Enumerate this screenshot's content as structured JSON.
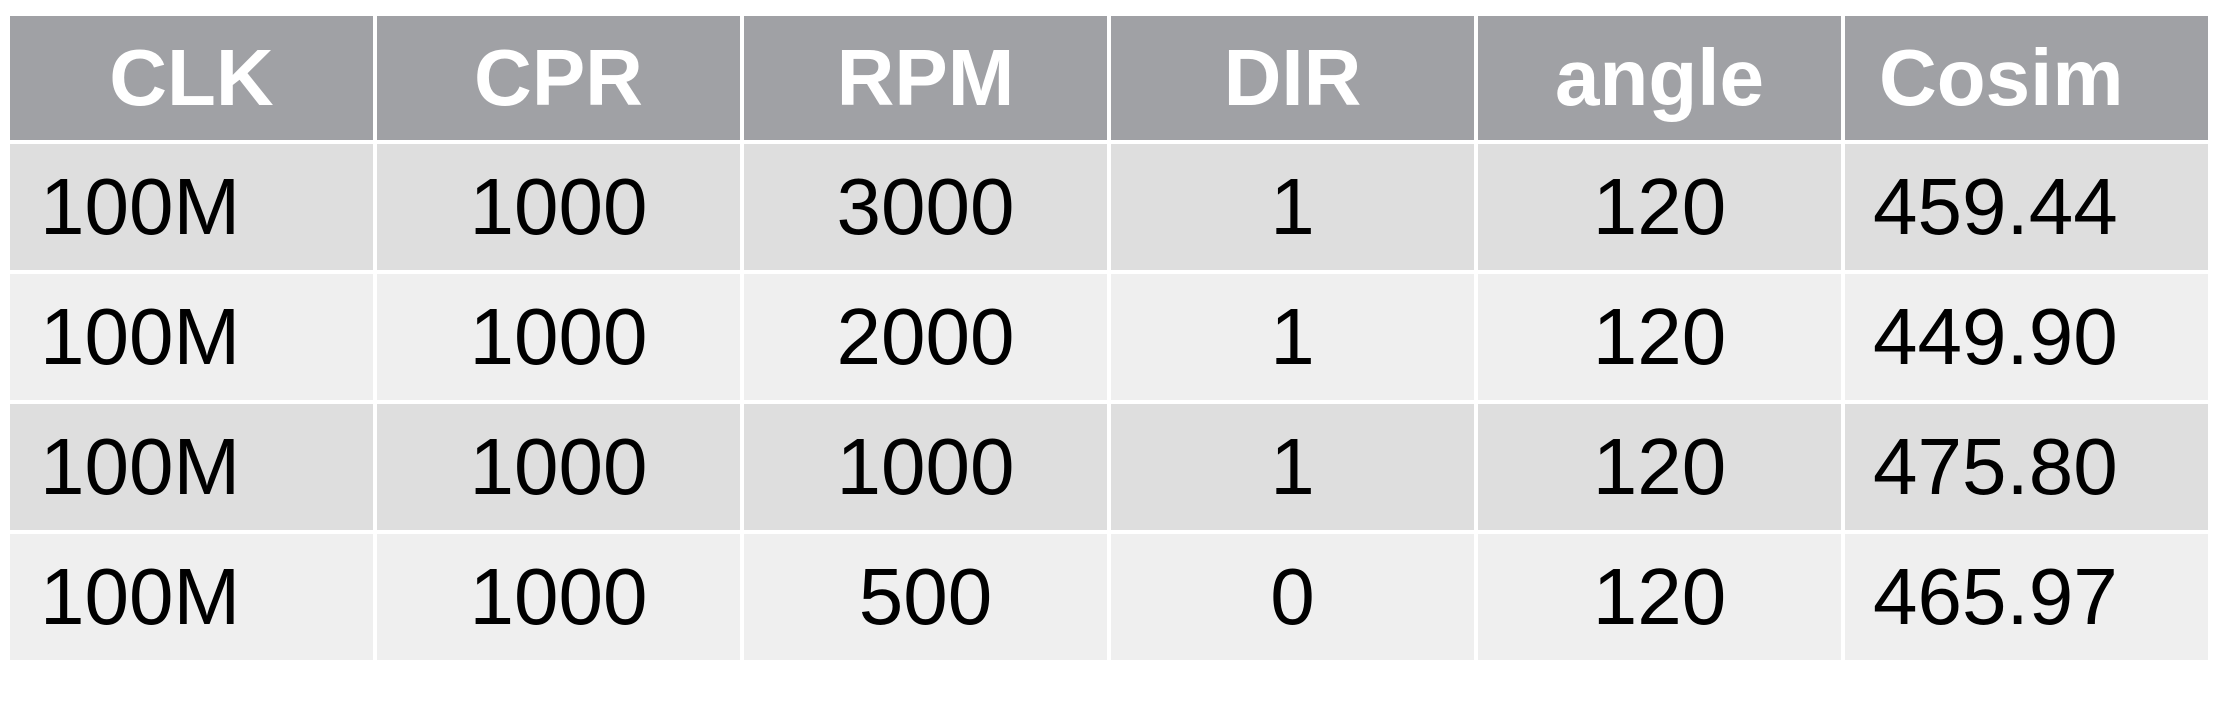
{
  "table": {
    "headers": [
      "CLK",
      "CPR",
      "RPM",
      "DIR",
      "angle",
      "Cosim"
    ],
    "rows": [
      [
        "100M",
        "1000",
        "3000",
        "1",
        "120",
        "459.44"
      ],
      [
        "100M",
        "1000",
        "2000",
        "1",
        "120",
        "449.90"
      ],
      [
        "100M",
        "1000",
        "1000",
        "1",
        "120",
        "475.80"
      ],
      [
        "100M",
        "1000",
        "500",
        "0",
        "120",
        "465.97"
      ]
    ]
  },
  "colors": {
    "header_bg": "#a0a1a5",
    "header_text": "#ffffff",
    "row_odd_bg": "#dedede",
    "row_even_bg": "#efefef",
    "cell_text": "#000000",
    "grid_lines": "#ffffff"
  }
}
